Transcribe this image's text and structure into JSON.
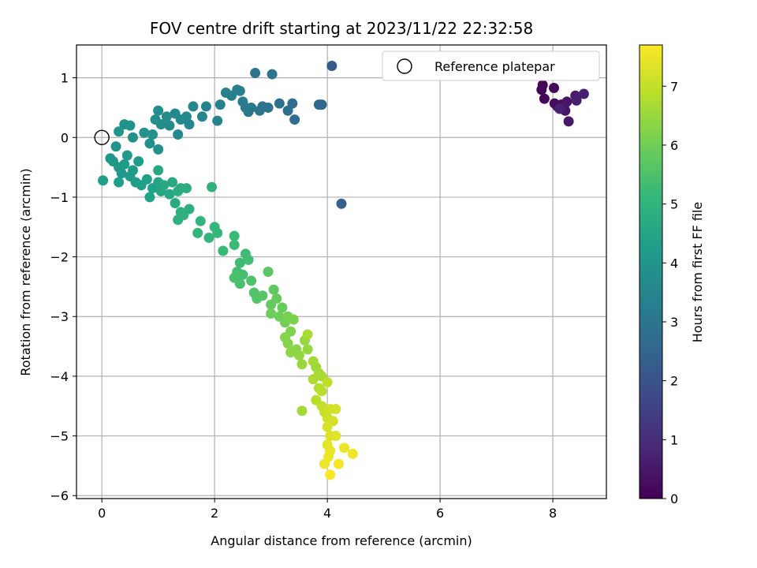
{
  "chart_data": {
    "type": "scatter",
    "title": "FOV centre drift starting at 2023/11/22 22:32:58",
    "xlabel": "Angular distance from reference (arcmin)",
    "ylabel": "Rotation from reference (arcmin)",
    "xlim": [
      -0.45,
      8.95
    ],
    "ylim": [
      -6.05,
      1.55
    ],
    "xticks": [
      0,
      2,
      4,
      6,
      8
    ],
    "yticks": [
      1,
      0,
      -1,
      -2,
      -3,
      -4,
      -5,
      -6
    ],
    "grid": true,
    "legend": {
      "label": "Reference platepar",
      "position": "top-right",
      "marker": "open-circle"
    },
    "reference_point": {
      "x": 0,
      "y": 0
    },
    "colorbar": {
      "label": "Hours from first FF file",
      "range": [
        0,
        7.7
      ],
      "ticks": [
        0,
        1,
        2,
        3,
        4,
        5,
        6,
        7
      ],
      "colormap": "viridis",
      "stops": [
        "#440154",
        "#482878",
        "#3e4989",
        "#31688e",
        "#26828e",
        "#1f9e89",
        "#35b779",
        "#6ece58",
        "#b5de2b",
        "#fde725"
      ]
    },
    "points": [
      {
        "x": 7.82,
        "y": 0.88,
        "h": 0.05
      },
      {
        "x": 7.8,
        "y": 0.8,
        "h": 0.1
      },
      {
        "x": 7.85,
        "y": 0.65,
        "h": 0.15
      },
      {
        "x": 8.02,
        "y": 0.83,
        "h": 0.2
      },
      {
        "x": 8.03,
        "y": 0.57,
        "h": 0.25
      },
      {
        "x": 8.08,
        "y": 0.52,
        "h": 0.3
      },
      {
        "x": 8.15,
        "y": 0.55,
        "h": 0.35
      },
      {
        "x": 8.2,
        "y": 0.5,
        "h": 0.4
      },
      {
        "x": 8.25,
        "y": 0.6,
        "h": 0.45
      },
      {
        "x": 8.22,
        "y": 0.45,
        "h": 0.5
      },
      {
        "x": 8.28,
        "y": 0.27,
        "h": 0.55
      },
      {
        "x": 8.4,
        "y": 0.7,
        "h": 0.6
      },
      {
        "x": 8.42,
        "y": 0.62,
        "h": 0.65
      },
      {
        "x": 8.55,
        "y": 0.73,
        "h": 0.7
      },
      {
        "x": 8.12,
        "y": 0.48,
        "h": 0.75
      },
      {
        "x": 4.08,
        "y": 1.2,
        "h": 2.2
      },
      {
        "x": 4.25,
        "y": -1.11,
        "h": 2.4
      },
      {
        "x": 3.9,
        "y": 0.55,
        "h": 2.5
      },
      {
        "x": 3.85,
        "y": 0.55,
        "h": 2.6
      },
      {
        "x": 3.42,
        "y": 0.3,
        "h": 2.7
      },
      {
        "x": 3.38,
        "y": 0.57,
        "h": 2.75
      },
      {
        "x": 3.3,
        "y": 0.45,
        "h": 2.8
      },
      {
        "x": 3.15,
        "y": 0.57,
        "h": 2.85
      },
      {
        "x": 2.95,
        "y": 0.5,
        "h": 2.9
      },
      {
        "x": 2.85,
        "y": 0.52,
        "h": 2.95
      },
      {
        "x": 2.8,
        "y": 0.45,
        "h": 3.0
      },
      {
        "x": 2.65,
        "y": 0.5,
        "h": 3.05
      },
      {
        "x": 2.6,
        "y": 0.43,
        "h": 3.1
      },
      {
        "x": 2.55,
        "y": 0.5,
        "h": 3.15
      },
      {
        "x": 2.5,
        "y": 0.6,
        "h": 3.2
      },
      {
        "x": 2.45,
        "y": 0.78,
        "h": 3.25
      },
      {
        "x": 2.4,
        "y": 0.8,
        "h": 3.3
      },
      {
        "x": 2.3,
        "y": 0.7,
        "h": 3.35
      },
      {
        "x": 2.2,
        "y": 0.75,
        "h": 3.35
      },
      {
        "x": 2.72,
        "y": 1.08,
        "h": 3.0
      },
      {
        "x": 3.02,
        "y": 1.06,
        "h": 3.0
      },
      {
        "x": 2.1,
        "y": 0.55,
        "h": 3.4
      },
      {
        "x": 2.05,
        "y": 0.28,
        "h": 3.45
      },
      {
        "x": 1.85,
        "y": 0.52,
        "h": 3.5
      },
      {
        "x": 1.78,
        "y": 0.35,
        "h": 3.5
      },
      {
        "x": 1.62,
        "y": 0.52,
        "h": 3.55
      },
      {
        "x": 1.55,
        "y": 0.22,
        "h": 3.55
      },
      {
        "x": 1.5,
        "y": 0.35,
        "h": 3.6
      },
      {
        "x": 1.4,
        "y": 0.3,
        "h": 3.6
      },
      {
        "x": 1.35,
        "y": 0.05,
        "h": 3.65
      },
      {
        "x": 1.3,
        "y": 0.4,
        "h": 3.65
      },
      {
        "x": 1.2,
        "y": 0.2,
        "h": 3.7
      },
      {
        "x": 1.15,
        "y": 0.35,
        "h": 3.7
      },
      {
        "x": 1.05,
        "y": 0.22,
        "h": 3.75
      },
      {
        "x": 1.0,
        "y": 0.45,
        "h": 3.75
      },
      {
        "x": 0.95,
        "y": 0.3,
        "h": 3.8
      },
      {
        "x": 1.0,
        "y": -0.2,
        "h": 3.8
      },
      {
        "x": 0.9,
        "y": 0.05,
        "h": 3.85
      },
      {
        "x": 0.85,
        "y": -0.1,
        "h": 3.85
      },
      {
        "x": 0.75,
        "y": 0.08,
        "h": 3.9
      },
      {
        "x": 0.55,
        "y": 0.0,
        "h": 3.9
      },
      {
        "x": 0.5,
        "y": 0.2,
        "h": 3.95
      },
      {
        "x": 0.4,
        "y": 0.22,
        "h": 3.95
      },
      {
        "x": 0.3,
        "y": 0.1,
        "h": 4.0
      },
      {
        "x": 0.25,
        "y": -0.15,
        "h": 4.0
      },
      {
        "x": 0.15,
        "y": -0.35,
        "h": 4.05
      },
      {
        "x": 0.2,
        "y": -0.4,
        "h": 4.05
      },
      {
        "x": 0.3,
        "y": -0.5,
        "h": 4.1
      },
      {
        "x": 0.35,
        "y": -0.6,
        "h": 4.1
      },
      {
        "x": 0.4,
        "y": -0.45,
        "h": 4.15
      },
      {
        "x": 0.45,
        "y": -0.3,
        "h": 4.15
      },
      {
        "x": 0.5,
        "y": -0.65,
        "h": 4.2
      },
      {
        "x": 0.55,
        "y": -0.55,
        "h": 4.2
      },
      {
        "x": 0.6,
        "y": -0.75,
        "h": 4.25
      },
      {
        "x": 0.65,
        "y": -0.4,
        "h": 4.25
      },
      {
        "x": 0.3,
        "y": -0.75,
        "h": 4.3
      },
      {
        "x": 0.02,
        "y": -0.72,
        "h": 4.3
      },
      {
        "x": 0.7,
        "y": -0.8,
        "h": 4.35
      },
      {
        "x": 0.8,
        "y": -0.7,
        "h": 4.35
      },
      {
        "x": 0.9,
        "y": -0.85,
        "h": 4.4
      },
      {
        "x": 0.85,
        "y": -1.0,
        "h": 4.45
      },
      {
        "x": 1.0,
        "y": -0.75,
        "h": 4.5
      },
      {
        "x": 1.05,
        "y": -0.9,
        "h": 4.5
      },
      {
        "x": 1.0,
        "y": -0.55,
        "h": 4.55
      },
      {
        "x": 1.1,
        "y": -0.8,
        "h": 4.6
      },
      {
        "x": 1.2,
        "y": -0.95,
        "h": 4.6
      },
      {
        "x": 1.25,
        "y": -0.75,
        "h": 4.65
      },
      {
        "x": 1.3,
        "y": -1.1,
        "h": 4.7
      },
      {
        "x": 1.35,
        "y": -0.9,
        "h": 4.75
      },
      {
        "x": 1.4,
        "y": -0.85,
        "h": 4.75
      },
      {
        "x": 1.5,
        "y": -0.85,
        "h": 4.8
      },
      {
        "x": 1.55,
        "y": -1.2,
        "h": 4.85
      },
      {
        "x": 1.4,
        "y": -1.25,
        "h": 4.85
      },
      {
        "x": 1.35,
        "y": -1.38,
        "h": 4.9
      },
      {
        "x": 1.45,
        "y": -1.3,
        "h": 4.9
      },
      {
        "x": 1.95,
        "y": -0.83,
        "h": 4.95
      },
      {
        "x": 1.75,
        "y": -1.4,
        "h": 5.0
      },
      {
        "x": 1.7,
        "y": -1.6,
        "h": 5.05
      },
      {
        "x": 1.9,
        "y": -1.68,
        "h": 5.1
      },
      {
        "x": 2.0,
        "y": -1.5,
        "h": 5.1
      },
      {
        "x": 2.05,
        "y": -1.6,
        "h": 5.15
      },
      {
        "x": 2.15,
        "y": -1.9,
        "h": 5.2
      },
      {
        "x": 2.35,
        "y": -1.65,
        "h": 5.2
      },
      {
        "x": 2.35,
        "y": -1.8,
        "h": 5.25
      },
      {
        "x": 2.45,
        "y": -2.1,
        "h": 5.3
      },
      {
        "x": 2.55,
        "y": -1.95,
        "h": 5.3
      },
      {
        "x": 2.6,
        "y": -2.05,
        "h": 5.35
      },
      {
        "x": 2.4,
        "y": -2.25,
        "h": 5.4
      },
      {
        "x": 2.5,
        "y": -2.3,
        "h": 5.4
      },
      {
        "x": 2.35,
        "y": -2.35,
        "h": 5.45
      },
      {
        "x": 2.45,
        "y": -2.45,
        "h": 5.45
      },
      {
        "x": 2.65,
        "y": -2.4,
        "h": 5.5
      },
      {
        "x": 2.7,
        "y": -2.6,
        "h": 5.55
      },
      {
        "x": 2.75,
        "y": -2.7,
        "h": 5.6
      },
      {
        "x": 2.85,
        "y": -2.65,
        "h": 5.65
      },
      {
        "x": 2.95,
        "y": -2.25,
        "h": 5.7
      },
      {
        "x": 3.05,
        "y": -2.55,
        "h": 5.75
      },
      {
        "x": 3.0,
        "y": -2.8,
        "h": 5.8
      },
      {
        "x": 3.1,
        "y": -2.7,
        "h": 5.85
      },
      {
        "x": 3.2,
        "y": -2.85,
        "h": 5.9
      },
      {
        "x": 3.0,
        "y": -2.95,
        "h": 5.95
      },
      {
        "x": 3.15,
        "y": -3.0,
        "h": 6.0
      },
      {
        "x": 3.25,
        "y": -3.1,
        "h": 6.05
      },
      {
        "x": 3.3,
        "y": -3.0,
        "h": 6.1
      },
      {
        "x": 3.4,
        "y": -3.05,
        "h": 6.15
      },
      {
        "x": 3.35,
        "y": -3.25,
        "h": 6.2
      },
      {
        "x": 3.3,
        "y": -3.45,
        "h": 6.25
      },
      {
        "x": 3.25,
        "y": -3.35,
        "h": 6.25
      },
      {
        "x": 3.45,
        "y": -3.55,
        "h": 6.3
      },
      {
        "x": 3.35,
        "y": -3.6,
        "h": 6.35
      },
      {
        "x": 3.5,
        "y": -3.65,
        "h": 6.4
      },
      {
        "x": 3.65,
        "y": -3.55,
        "h": 6.45
      },
      {
        "x": 3.6,
        "y": -3.4,
        "h": 6.45
      },
      {
        "x": 3.55,
        "y": -3.8,
        "h": 6.5
      },
      {
        "x": 3.8,
        "y": -3.85,
        "h": 6.55
      },
      {
        "x": 3.75,
        "y": -3.75,
        "h": 6.6
      },
      {
        "x": 3.85,
        "y": -3.95,
        "h": 6.65
      },
      {
        "x": 3.9,
        "y": -4.0,
        "h": 6.7
      },
      {
        "x": 3.65,
        "y": -3.3,
        "h": 6.7
      },
      {
        "x": 3.75,
        "y": -4.05,
        "h": 6.75
      },
      {
        "x": 3.85,
        "y": -4.2,
        "h": 6.8
      },
      {
        "x": 3.8,
        "y": -4.4,
        "h": 6.85
      },
      {
        "x": 3.9,
        "y": -4.25,
        "h": 6.9
      },
      {
        "x": 4.0,
        "y": -4.1,
        "h": 6.95
      },
      {
        "x": 3.55,
        "y": -4.58,
        "h": 6.6
      },
      {
        "x": 3.9,
        "y": -4.5,
        "h": 7.0
      },
      {
        "x": 3.95,
        "y": -4.6,
        "h": 7.05
      },
      {
        "x": 4.0,
        "y": -4.7,
        "h": 7.1
      },
      {
        "x": 4.05,
        "y": -4.55,
        "h": 7.15
      },
      {
        "x": 4.15,
        "y": -4.55,
        "h": 7.2
      },
      {
        "x": 4.1,
        "y": -4.75,
        "h": 7.2
      },
      {
        "x": 4.0,
        "y": -4.85,
        "h": 7.25
      },
      {
        "x": 4.05,
        "y": -5.0,
        "h": 7.3
      },
      {
        "x": 4.15,
        "y": -5.0,
        "h": 7.35
      },
      {
        "x": 4.0,
        "y": -5.15,
        "h": 7.4
      },
      {
        "x": 4.05,
        "y": -5.25,
        "h": 7.45
      },
      {
        "x": 4.3,
        "y": -5.2,
        "h": 7.5
      },
      {
        "x": 4.45,
        "y": -5.3,
        "h": 7.55
      },
      {
        "x": 3.95,
        "y": -5.47,
        "h": 7.55
      },
      {
        "x": 4.2,
        "y": -5.47,
        "h": 7.6
      },
      {
        "x": 4.05,
        "y": -5.65,
        "h": 7.65
      },
      {
        "x": 4.02,
        "y": -5.35,
        "h": 7.5
      }
    ]
  }
}
